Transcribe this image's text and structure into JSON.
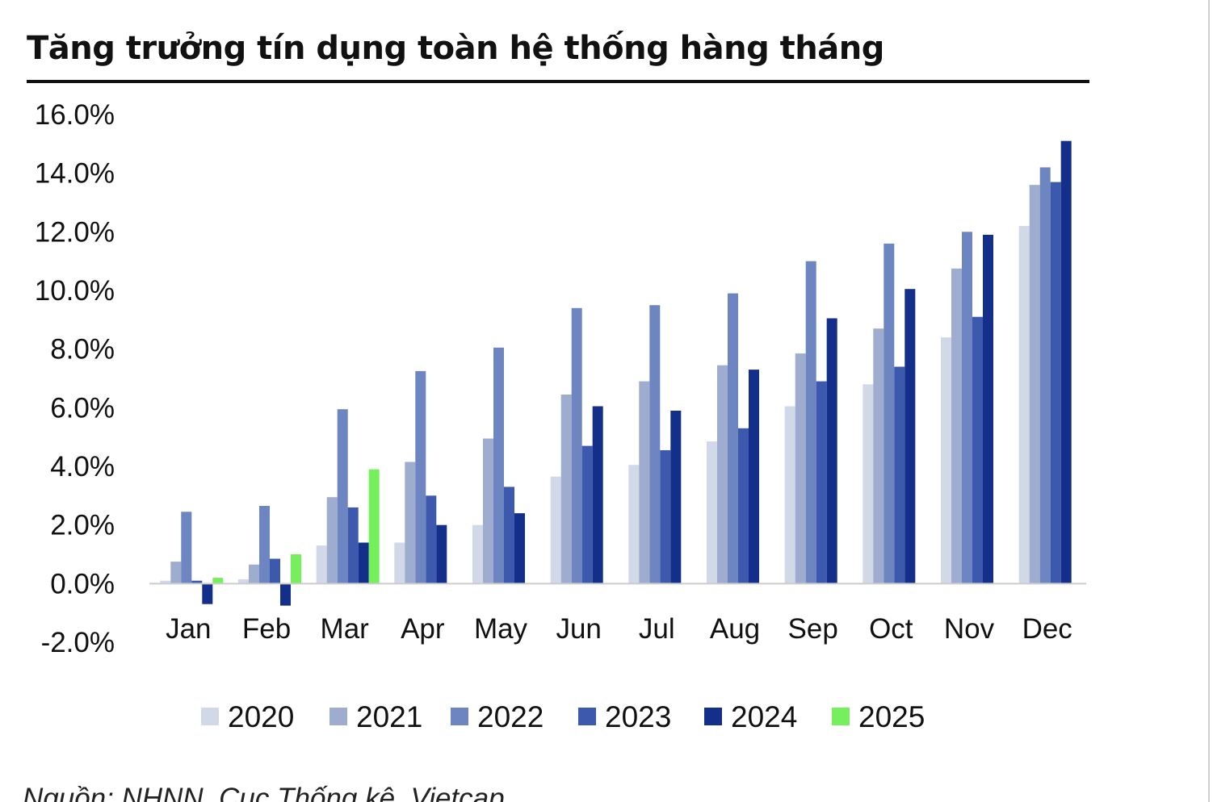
{
  "chart_title": "Tăng trưởng tín dụng toàn hệ thống hàng tháng",
  "source_note": "Nguồn: NHNN, Cục Thống kê, Vietcap",
  "colors": {
    "2020": "#d1d9e8",
    "2021": "#9eaccf",
    "2022": "#6d85c0",
    "2023": "#3d59ad",
    "2024": "#132f8a",
    "2025": "#75f05c",
    "axis": "#cccccc",
    "text": "#111111"
  },
  "chart_data": {
    "type": "bar",
    "title": "Tăng trưởng tín dụng toàn hệ thống hàng tháng",
    "xlabel": "",
    "ylabel": "",
    "ylim": [
      -2.0,
      16.0
    ],
    "y_ticks": [
      "16.0%",
      "14.0%",
      "12.0%",
      "10.0%",
      "8.0%",
      "6.0%",
      "4.0%",
      "2.0%",
      "0.0%",
      "-2.0%"
    ],
    "y_tick_values": [
      16,
      14,
      12,
      10,
      8,
      6,
      4,
      2,
      0,
      -2
    ],
    "grid": false,
    "legend_position": "bottom",
    "categories": [
      "Jan",
      "Feb",
      "Mar",
      "Apr",
      "May",
      "Jun",
      "Jul",
      "Aug",
      "Sep",
      "Oct",
      "Nov",
      "Dec"
    ],
    "series": [
      {
        "name": "2020",
        "values": [
          0.1,
          0.15,
          1.3,
          1.4,
          2.0,
          3.65,
          4.05,
          4.85,
          6.05,
          6.8,
          8.4,
          12.2
        ]
      },
      {
        "name": "2021",
        "values": [
          0.75,
          0.65,
          2.95,
          4.15,
          4.95,
          6.45,
          6.9,
          7.45,
          7.85,
          8.7,
          10.75,
          13.6
        ]
      },
      {
        "name": "2022",
        "values": [
          2.45,
          2.65,
          5.95,
          7.25,
          8.05,
          9.4,
          9.5,
          9.9,
          11.0,
          11.6,
          12.0,
          14.2
        ]
      },
      {
        "name": "2023",
        "values": [
          0.1,
          0.85,
          2.6,
          3.0,
          3.3,
          4.7,
          4.55,
          5.3,
          6.9,
          7.4,
          9.1,
          13.7
        ]
      },
      {
        "name": "2024",
        "values": [
          -0.7,
          -0.75,
          1.4,
          2.0,
          2.4,
          6.05,
          5.9,
          7.3,
          9.05,
          10.05,
          11.9,
          15.1
        ]
      },
      {
        "name": "2025",
        "values": [
          0.2,
          1.0,
          3.9,
          null,
          null,
          null,
          null,
          null,
          null,
          null,
          null,
          null
        ]
      }
    ]
  }
}
